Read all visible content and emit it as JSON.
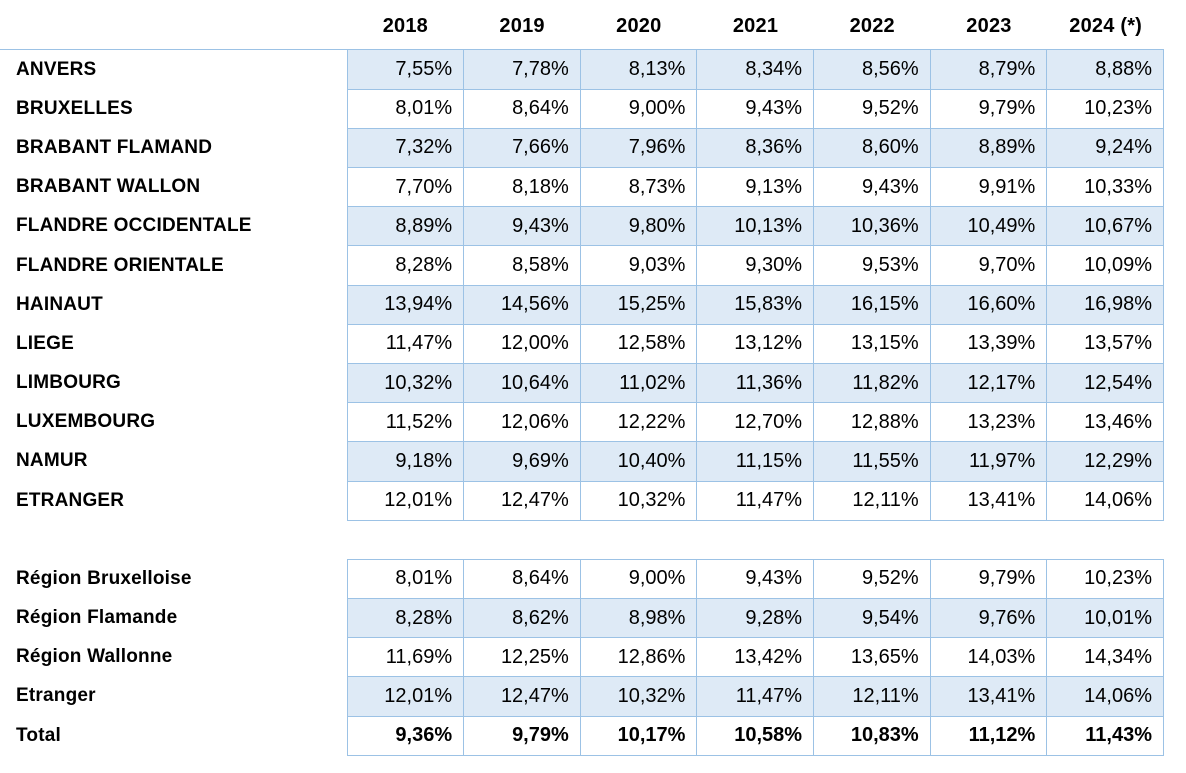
{
  "columns": [
    "2018",
    "2019",
    "2020",
    "2021",
    "2022",
    "2023",
    "2024 (*)"
  ],
  "blocks": [
    {
      "name": "provinces",
      "band_offset": 0,
      "rows": [
        {
          "label": "ANVERS",
          "values": [
            "7,55%",
            "7,78%",
            "8,13%",
            "8,34%",
            "8,56%",
            "8,79%",
            "8,88%"
          ]
        },
        {
          "label": "BRUXELLES",
          "values": [
            "8,01%",
            "8,64%",
            "9,00%",
            "9,43%",
            "9,52%",
            "9,79%",
            "10,23%"
          ]
        },
        {
          "label": "BRABANT FLAMAND",
          "values": [
            "7,32%",
            "7,66%",
            "7,96%",
            "8,36%",
            "8,60%",
            "8,89%",
            "9,24%"
          ]
        },
        {
          "label": "BRABANT WALLON",
          "values": [
            "7,70%",
            "8,18%",
            "8,73%",
            "9,13%",
            "9,43%",
            "9,91%",
            "10,33%"
          ]
        },
        {
          "label": "FLANDRE OCCIDENTALE",
          "values": [
            "8,89%",
            "9,43%",
            "9,80%",
            "10,13%",
            "10,36%",
            "10,49%",
            "10,67%"
          ]
        },
        {
          "label": "FLANDRE ORIENTALE",
          "values": [
            "8,28%",
            "8,58%",
            "9,03%",
            "9,30%",
            "9,53%",
            "9,70%",
            "10,09%"
          ]
        },
        {
          "label": "HAINAUT",
          "values": [
            "13,94%",
            "14,56%",
            "15,25%",
            "15,83%",
            "16,15%",
            "16,60%",
            "16,98%"
          ]
        },
        {
          "label": "LIEGE",
          "values": [
            "11,47%",
            "12,00%",
            "12,58%",
            "13,12%",
            "13,15%",
            "13,39%",
            "13,57%"
          ]
        },
        {
          "label": "LIMBOURG",
          "values": [
            "10,32%",
            "10,64%",
            "11,02%",
            "11,36%",
            "11,82%",
            "12,17%",
            "12,54%"
          ]
        },
        {
          "label": "LUXEMBOURG",
          "values": [
            "11,52%",
            "12,06%",
            "12,22%",
            "12,70%",
            "12,88%",
            "13,23%",
            "13,46%"
          ]
        },
        {
          "label": "NAMUR",
          "values": [
            "9,18%",
            "9,69%",
            "10,40%",
            "11,15%",
            "11,55%",
            "11,97%",
            "12,29%"
          ]
        },
        {
          "label": "ETRANGER",
          "values": [
            "12,01%",
            "12,47%",
            "10,32%",
            "11,47%",
            "12,11%",
            "13,41%",
            "14,06%"
          ]
        }
      ]
    },
    {
      "name": "regions",
      "band_offset": 1,
      "rows": [
        {
          "label": "Région Bruxelloise",
          "values": [
            "8,01%",
            "8,64%",
            "9,00%",
            "9,43%",
            "9,52%",
            "9,79%",
            "10,23%"
          ]
        },
        {
          "label": "Région Flamande",
          "values": [
            "8,28%",
            "8,62%",
            "8,98%",
            "9,28%",
            "9,54%",
            "9,76%",
            "10,01%"
          ]
        },
        {
          "label": "Région Wallonne",
          "values": [
            "11,69%",
            "12,25%",
            "12,86%",
            "13,42%",
            "13,65%",
            "14,03%",
            "14,34%"
          ]
        },
        {
          "label": "Etranger",
          "values": [
            "12,01%",
            "12,47%",
            "10,32%",
            "11,47%",
            "12,11%",
            "13,41%",
            "14,06%"
          ]
        },
        {
          "label": "Total",
          "values": [
            "9,36%",
            "9,79%",
            "10,17%",
            "10,58%",
            "10,83%",
            "11,12%",
            "11,43%"
          ],
          "emphasis": true
        }
      ]
    }
  ],
  "style": {
    "band_fill": "#DEEAF6",
    "border_color": "#9CC2E5",
    "text_color": "#000000",
    "background": "#FFFFFF"
  }
}
